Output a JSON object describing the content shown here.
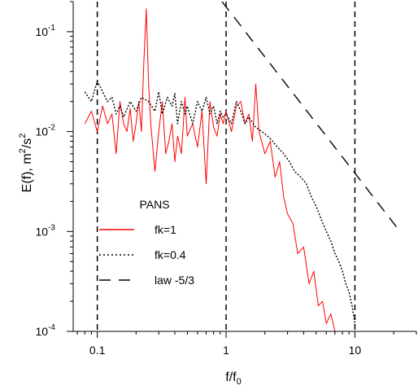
{
  "chart_data": {
    "type": "line",
    "x_scale": "log",
    "y_scale": "log",
    "xlim": [
      0.065,
      30
    ],
    "ylim": [
      0.0001,
      0.2
    ],
    "xlabel_main": "f/f",
    "xlabel_sub": "0",
    "ylabel_main": "E(f), m",
    "ylabel_sup1": "2",
    "ylabel_mid": "/s",
    "ylabel_sup2": "2",
    "x_ticks": [
      {
        "value": 0.1,
        "label": "0.1"
      },
      {
        "value": 1,
        "label": "1"
      },
      {
        "value": 10,
        "label": "10"
      }
    ],
    "y_ticks": [
      {
        "value": 0.1,
        "base": "10",
        "exp": "-1"
      },
      {
        "value": 0.01,
        "base": "10",
        "exp": "-2"
      },
      {
        "value": 0.001,
        "base": "10",
        "exp": "-3"
      },
      {
        "value": 0.0001,
        "base": "10",
        "exp": "-4"
      }
    ],
    "vlines": [
      0.1,
      1,
      10
    ],
    "legend_title": "PANS",
    "legend_placement": "lower-left",
    "series": [
      {
        "name": "fk=1",
        "color": "#ff0000",
        "style": "solid",
        "x": [
          0.08,
          0.09,
          0.1,
          0.11,
          0.12,
          0.13,
          0.14,
          0.15,
          0.16,
          0.17,
          0.18,
          0.19,
          0.2,
          0.21,
          0.22,
          0.23,
          0.24,
          0.25,
          0.26,
          0.28,
          0.3,
          0.32,
          0.34,
          0.36,
          0.38,
          0.4,
          0.42,
          0.45,
          0.48,
          0.5,
          0.55,
          0.6,
          0.65,
          0.7,
          0.75,
          0.8,
          0.85,
          0.9,
          0.95,
          1.0,
          1.1,
          1.2,
          1.3,
          1.4,
          1.5,
          1.6,
          1.7,
          1.8,
          2.0,
          2.2,
          2.4,
          2.6,
          2.8,
          3.0,
          3.3,
          3.6,
          4.0,
          4.4,
          4.8,
          5.2,
          5.6,
          6.0,
          6.5,
          7.0
        ],
        "y": [
          0.012,
          0.016,
          0.01,
          0.018,
          0.012,
          0.015,
          0.006,
          0.02,
          0.012,
          0.01,
          0.017,
          0.008,
          0.012,
          0.02,
          0.01,
          0.05,
          0.17,
          0.03,
          0.012,
          0.004,
          0.01,
          0.02,
          0.006,
          0.008,
          0.012,
          0.005,
          0.009,
          0.006,
          0.022,
          0.009,
          0.012,
          0.007,
          0.016,
          0.003,
          0.02,
          0.011,
          0.009,
          0.015,
          0.012,
          0.016,
          0.01,
          0.018,
          0.02,
          0.012,
          0.015,
          0.008,
          0.03,
          0.01,
          0.006,
          0.008,
          0.0035,
          0.005,
          0.0022,
          0.0015,
          0.0012,
          0.0006,
          0.0007,
          0.0003,
          0.0004,
          0.00018,
          0.0002,
          0.00012,
          0.00015,
          0.0001
        ]
      },
      {
        "name": "fk=0.4",
        "color": "#000000",
        "style": "dotted",
        "x": [
          0.08,
          0.09,
          0.1,
          0.11,
          0.12,
          0.13,
          0.14,
          0.15,
          0.16,
          0.18,
          0.2,
          0.22,
          0.25,
          0.28,
          0.3,
          0.32,
          0.35,
          0.38,
          0.4,
          0.42,
          0.45,
          0.48,
          0.5,
          0.55,
          0.6,
          0.65,
          0.7,
          0.75,
          0.8,
          0.85,
          0.9,
          0.95,
          1.0,
          1.1,
          1.2,
          1.3,
          1.4,
          1.5,
          1.7,
          1.9,
          2.1,
          2.3,
          2.5,
          2.8,
          3.1,
          3.4,
          3.8,
          4.2,
          4.6,
          5.0,
          5.5,
          6.0,
          6.5,
          7.0,
          7.5,
          8.0,
          8.5,
          9.0,
          9.5,
          10.0
        ],
        "y": [
          0.025,
          0.02,
          0.032,
          0.025,
          0.02,
          0.022,
          0.015,
          0.018,
          0.014,
          0.02,
          0.016,
          0.022,
          0.02,
          0.016,
          0.025,
          0.015,
          0.022,
          0.018,
          0.024,
          0.012,
          0.02,
          0.015,
          0.018,
          0.012,
          0.02,
          0.016,
          0.022,
          0.015,
          0.018,
          0.012,
          0.016,
          0.014,
          0.015,
          0.012,
          0.02,
          0.016,
          0.012,
          0.014,
          0.011,
          0.01,
          0.009,
          0.008,
          0.007,
          0.006,
          0.005,
          0.004,
          0.0035,
          0.003,
          0.0022,
          0.0018,
          0.0013,
          0.001,
          0.0008,
          0.0006,
          0.0005,
          0.0004,
          0.0003,
          0.00025,
          0.00018,
          0.00012
        ]
      },
      {
        "name": "law -5/3",
        "color": "#000000",
        "style": "dashed",
        "x": [
          0.93,
          1.2,
          1.6,
          2.0,
          3.0,
          5.0,
          8.0,
          10.0,
          15.0,
          22.0
        ],
        "y": [
          0.2,
          0.131,
          0.0808,
          0.056,
          0.0285,
          0.0122,
          0.00556,
          0.00384,
          0.00195,
          0.00103
        ]
      }
    ]
  }
}
